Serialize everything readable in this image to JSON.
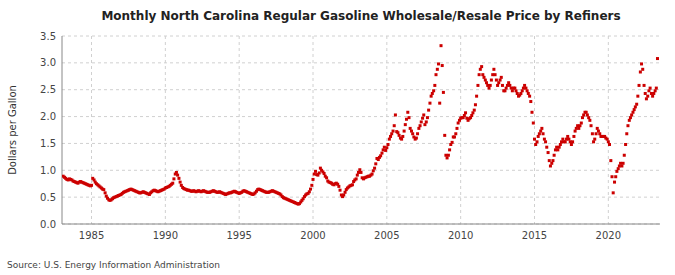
{
  "chart_data": {
    "type": "scatter",
    "title": "Monthly North Carolina Regular Gasoline Wholesale/Resale Price by Refiners",
    "ylabel": "Dollars per Gallon",
    "annotations": [
      "Source: U.S. Energy Information Administration"
    ],
    "color": "#cc0000",
    "marker": "square",
    "grid": true,
    "xlim": [
      1983.0,
      2023.5
    ],
    "ylim": [
      0.0,
      3.5
    ],
    "xticks": [
      1985,
      1990,
      1995,
      2000,
      2005,
      2010,
      2015,
      2020
    ],
    "yticks": [
      {
        "value": 0.0,
        "label": "0.0"
      },
      0.5,
      {
        "value": 1.0,
        "label": "1.0"
      },
      1.5,
      {
        "value": 2.0,
        "label": "2.0"
      },
      2.5,
      {
        "value": 3.0,
        "label": "3.0"
      },
      3.5
    ],
    "x": [
      1983.08,
      1983.17,
      1983.25,
      1983.33,
      1983.42,
      1983.5,
      1983.58,
      1983.67,
      1983.75,
      1983.83,
      1983.92,
      1984.0,
      1984.08,
      1984.17,
      1984.25,
      1984.33,
      1984.42,
      1984.5,
      1984.58,
      1984.67,
      1984.75,
      1984.83,
      1984.92,
      1985.0,
      1985.08,
      1985.17,
      1985.25,
      1985.33,
      1985.42,
      1985.5,
      1985.58,
      1985.67,
      1985.75,
      1985.83,
      1985.92,
      1986.0,
      1986.08,
      1986.17,
      1986.25,
      1986.33,
      1986.42,
      1986.5,
      1986.58,
      1986.67,
      1986.75,
      1986.83,
      1986.92,
      1987.0,
      1987.08,
      1987.17,
      1987.25,
      1987.33,
      1987.42,
      1987.5,
      1987.58,
      1987.67,
      1987.75,
      1987.83,
      1987.92,
      1988.0,
      1988.08,
      1988.17,
      1988.25,
      1988.33,
      1988.42,
      1988.5,
      1988.58,
      1988.67,
      1988.75,
      1988.83,
      1988.92,
      1989.0,
      1989.08,
      1989.17,
      1989.25,
      1989.33,
      1989.42,
      1989.5,
      1989.58,
      1989.67,
      1989.75,
      1989.83,
      1989.92,
      1990.0,
      1990.08,
      1990.17,
      1990.25,
      1990.33,
      1990.42,
      1990.5,
      1990.58,
      1990.67,
      1990.75,
      1990.83,
      1990.92,
      1991.0,
      1991.08,
      1991.17,
      1991.25,
      1991.33,
      1991.42,
      1991.5,
      1991.58,
      1991.67,
      1991.75,
      1991.83,
      1991.92,
      1992.0,
      1992.08,
      1992.17,
      1992.25,
      1992.33,
      1992.42,
      1992.5,
      1992.58,
      1992.67,
      1992.75,
      1992.83,
      1992.92,
      1993.0,
      1993.08,
      1993.17,
      1993.25,
      1993.33,
      1993.42,
      1993.5,
      1993.58,
      1993.67,
      1993.75,
      1993.83,
      1993.92,
      1994.0,
      1994.08,
      1994.17,
      1994.25,
      1994.33,
      1994.42,
      1994.5,
      1994.58,
      1994.67,
      1994.75,
      1994.83,
      1994.92,
      1995.0,
      1995.08,
      1995.17,
      1995.25,
      1995.33,
      1995.42,
      1995.5,
      1995.58,
      1995.67,
      1995.75,
      1995.83,
      1995.92,
      1996.0,
      1996.08,
      1996.17,
      1996.25,
      1996.33,
      1996.42,
      1996.5,
      1996.58,
      1996.67,
      1996.75,
      1996.83,
      1996.92,
      1997.0,
      1997.08,
      1997.17,
      1997.25,
      1997.33,
      1997.42,
      1997.5,
      1997.58,
      1997.67,
      1997.75,
      1997.83,
      1997.92,
      1998.0,
      1998.08,
      1998.17,
      1998.25,
      1998.33,
      1998.42,
      1998.5,
      1998.58,
      1998.67,
      1998.75,
      1998.83,
      1998.92,
      1999.0,
      1999.08,
      1999.17,
      1999.25,
      1999.33,
      1999.42,
      1999.5,
      1999.58,
      1999.67,
      1999.75,
      1999.83,
      1999.92,
      2000.0,
      2000.08,
      2000.17,
      2000.25,
      2000.33,
      2000.42,
      2000.5,
      2000.58,
      2000.67,
      2000.75,
      2000.83,
      2000.92,
      2001.0,
      2001.08,
      2001.17,
      2001.25,
      2001.33,
      2001.42,
      2001.5,
      2001.58,
      2001.67,
      2001.75,
      2001.83,
      2001.92,
      2002.0,
      2002.08,
      2002.17,
      2002.25,
      2002.33,
      2002.42,
      2002.5,
      2002.58,
      2002.67,
      2002.75,
      2002.83,
      2002.92,
      2003.0,
      2003.08,
      2003.17,
      2003.25,
      2003.33,
      2003.42,
      2003.5,
      2003.58,
      2003.67,
      2003.75,
      2003.83,
      2003.92,
      2004.0,
      2004.08,
      2004.17,
      2004.25,
      2004.33,
      2004.42,
      2004.5,
      2004.58,
      2004.67,
      2004.75,
      2004.83,
      2004.92,
      2005.0,
      2005.08,
      2005.17,
      2005.25,
      2005.33,
      2005.42,
      2005.5,
      2005.58,
      2005.67,
      2005.75,
      2005.83,
      2005.92,
      2006.0,
      2006.08,
      2006.17,
      2006.25,
      2006.33,
      2006.42,
      2006.5,
      2006.58,
      2006.67,
      2006.75,
      2006.83,
      2006.92,
      2007.0,
      2007.08,
      2007.17,
      2007.25,
      2007.33,
      2007.42,
      2007.5,
      2007.58,
      2007.67,
      2007.75,
      2007.83,
      2007.92,
      2008.0,
      2008.08,
      2008.17,
      2008.25,
      2008.33,
      2008.42,
      2008.5,
      2008.58,
      2008.67,
      2008.75,
      2008.83,
      2008.92,
      2009.0,
      2009.08,
      2009.17,
      2009.25,
      2009.33,
      2009.42,
      2009.5,
      2009.58,
      2009.67,
      2009.75,
      2009.83,
      2009.92,
      2010.0,
      2010.08,
      2010.17,
      2010.25,
      2010.33,
      2010.42,
      2010.5,
      2010.58,
      2010.67,
      2010.75,
      2010.83,
      2010.92,
      2011.0,
      2011.08,
      2011.17,
      2011.25,
      2011.33,
      2011.42,
      2011.5,
      2011.58,
      2011.67,
      2011.75,
      2011.83,
      2011.92,
      2012.0,
      2012.08,
      2012.17,
      2012.25,
      2012.33,
      2012.42,
      2012.5,
      2012.58,
      2012.67,
      2012.75,
      2012.83,
      2012.92,
      2013.0,
      2013.08,
      2013.17,
      2013.25,
      2013.33,
      2013.42,
      2013.5,
      2013.58,
      2013.67,
      2013.75,
      2013.83,
      2013.92,
      2014.0,
      2014.08,
      2014.17,
      2014.25,
      2014.33,
      2014.42,
      2014.5,
      2014.58,
      2014.67,
      2014.75,
      2014.83,
      2014.92,
      2015.0,
      2015.08,
      2015.17,
      2015.25,
      2015.33,
      2015.42,
      2015.5,
      2015.58,
      2015.67,
      2015.75,
      2015.83,
      2015.92,
      2016.0,
      2016.08,
      2016.17,
      2016.25,
      2016.33,
      2016.42,
      2016.5,
      2016.58,
      2016.67,
      2016.75,
      2016.83,
      2016.92,
      2017.0,
      2017.08,
      2017.17,
      2017.25,
      2017.33,
      2017.42,
      2017.5,
      2017.58,
      2017.67,
      2017.75,
      2017.83,
      2017.92,
      2018.0,
      2018.08,
      2018.17,
      2018.25,
      2018.33,
      2018.42,
      2018.5,
      2018.58,
      2018.67,
      2018.75,
      2018.83,
      2018.92,
      2019.0,
      2019.08,
      2019.17,
      2019.25,
      2019.33,
      2019.42,
      2019.5,
      2019.58,
      2019.67,
      2019.75,
      2019.83,
      2019.92,
      2020.0,
      2020.08,
      2020.17,
      2020.25,
      2020.33,
      2020.42,
      2020.5,
      2020.58,
      2020.67,
      2020.75,
      2020.83,
      2020.92,
      2021.0,
      2021.08,
      2021.17,
      2021.25,
      2021.33,
      2021.42,
      2021.5,
      2021.58,
      2021.67,
      2021.75,
      2021.83,
      2021.92,
      2022.0,
      2022.08,
      2022.17,
      2022.25,
      2022.33,
      2022.42,
      2022.5,
      2022.58,
      2022.67,
      2022.75,
      2022.83,
      2022.92,
      2023.0,
      2023.08,
      2023.17,
      2023.25,
      2023.33
    ],
    "values": [
      0.89,
      0.87,
      0.85,
      0.83,
      0.82,
      0.84,
      0.83,
      0.82,
      0.8,
      0.79,
      0.78,
      0.77,
      0.76,
      0.78,
      0.79,
      0.78,
      0.77,
      0.76,
      0.75,
      0.74,
      0.73,
      0.72,
      0.71,
      0.72,
      0.85,
      0.82,
      0.78,
      0.75,
      0.73,
      0.71,
      0.69,
      0.67,
      0.65,
      0.64,
      0.58,
      0.52,
      0.48,
      0.45,
      0.44,
      0.45,
      0.47,
      0.49,
      0.5,
      0.51,
      0.52,
      0.53,
      0.54,
      0.55,
      0.57,
      0.59,
      0.6,
      0.61,
      0.62,
      0.63,
      0.64,
      0.65,
      0.64,
      0.63,
      0.62,
      0.61,
      0.6,
      0.59,
      0.58,
      0.58,
      0.59,
      0.6,
      0.59,
      0.58,
      0.57,
      0.56,
      0.55,
      0.58,
      0.6,
      0.62,
      0.63,
      0.62,
      0.61,
      0.6,
      0.61,
      0.62,
      0.63,
      0.64,
      0.65,
      0.67,
      0.68,
      0.69,
      0.7,
      0.72,
      0.74,
      0.76,
      0.84,
      0.93,
      0.96,
      0.91,
      0.85,
      0.78,
      0.72,
      0.68,
      0.66,
      0.65,
      0.64,
      0.63,
      0.63,
      0.62,
      0.61,
      0.61,
      0.62,
      0.61,
      0.6,
      0.61,
      0.62,
      0.61,
      0.6,
      0.61,
      0.62,
      0.61,
      0.6,
      0.59,
      0.59,
      0.59,
      0.6,
      0.61,
      0.62,
      0.61,
      0.6,
      0.59,
      0.59,
      0.6,
      0.59,
      0.58,
      0.57,
      0.56,
      0.55,
      0.56,
      0.57,
      0.58,
      0.58,
      0.59,
      0.6,
      0.61,
      0.6,
      0.59,
      0.58,
      0.57,
      0.58,
      0.59,
      0.61,
      0.62,
      0.61,
      0.6,
      0.59,
      0.58,
      0.57,
      0.56,
      0.55,
      0.56,
      0.58,
      0.61,
      0.64,
      0.65,
      0.64,
      0.63,
      0.62,
      0.61,
      0.6,
      0.59,
      0.59,
      0.59,
      0.6,
      0.61,
      0.62,
      0.61,
      0.6,
      0.59,
      0.58,
      0.57,
      0.56,
      0.54,
      0.51,
      0.49,
      0.48,
      0.47,
      0.46,
      0.45,
      0.44,
      0.43,
      0.42,
      0.41,
      0.4,
      0.39,
      0.38,
      0.37,
      0.38,
      0.41,
      0.44,
      0.47,
      0.51,
      0.54,
      0.56,
      0.57,
      0.6,
      0.65,
      0.72,
      0.83,
      0.93,
      0.98,
      0.92,
      0.91,
      0.95,
      1.04,
      1.0,
      0.97,
      0.94,
      0.89,
      0.86,
      0.8,
      0.78,
      0.77,
      0.76,
      0.74,
      0.73,
      0.75,
      0.76,
      0.74,
      0.7,
      0.63,
      0.54,
      0.51,
      0.54,
      0.59,
      0.64,
      0.67,
      0.69,
      0.71,
      0.72,
      0.73,
      0.79,
      0.82,
      0.84,
      0.91,
      0.96,
      1.01,
      0.96,
      0.86,
      0.84,
      0.86,
      0.87,
      0.88,
      0.89,
      0.89,
      0.91,
      0.93,
      0.99,
      1.04,
      1.12,
      1.22,
      1.2,
      1.24,
      1.27,
      1.32,
      1.38,
      1.43,
      1.37,
      1.42,
      1.48,
      1.58,
      1.63,
      1.68,
      1.73,
      1.83,
      2.03,
      1.72,
      1.7,
      1.65,
      1.6,
      1.58,
      1.63,
      1.73,
      1.85,
      1.95,
      2.08,
      1.98,
      1.78,
      1.73,
      1.68,
      1.62,
      1.58,
      1.6,
      1.68,
      1.78,
      1.83,
      1.9,
      1.97,
      2.03,
      1.85,
      1.9,
      1.98,
      2.12,
      2.25,
      2.38,
      2.43,
      2.48,
      2.58,
      2.78,
      2.88,
      2.98,
      2.25,
      3.32,
      2.95,
      2.45,
      1.65,
      1.28,
      1.23,
      1.28,
      1.38,
      1.48,
      1.52,
      1.62,
      1.62,
      1.68,
      1.78,
      1.88,
      1.93,
      1.97,
      1.98,
      1.98,
      2.02,
      2.07,
      1.97,
      1.93,
      1.96,
      1.98,
      2.02,
      2.07,
      2.12,
      2.22,
      2.38,
      2.58,
      2.78,
      2.88,
      2.93,
      2.78,
      2.73,
      2.68,
      2.63,
      2.58,
      2.53,
      2.58,
      2.68,
      2.78,
      2.88,
      2.78,
      2.68,
      2.58,
      2.63,
      2.68,
      2.73,
      2.58,
      2.48,
      2.48,
      2.53,
      2.58,
      2.63,
      2.58,
      2.53,
      2.48,
      2.53,
      2.53,
      2.48,
      2.43,
      2.38,
      2.4,
      2.43,
      2.48,
      2.53,
      2.58,
      2.53,
      2.48,
      2.43,
      2.38,
      2.28,
      2.08,
      1.88,
      1.58,
      1.48,
      1.53,
      1.63,
      1.68,
      1.73,
      1.78,
      1.68,
      1.58,
      1.53,
      1.43,
      1.33,
      1.18,
      1.08,
      1.13,
      1.18,
      1.28,
      1.38,
      1.43,
      1.38,
      1.43,
      1.48,
      1.53,
      1.58,
      1.53,
      1.53,
      1.58,
      1.63,
      1.58,
      1.53,
      1.48,
      1.53,
      1.63,
      1.73,
      1.78,
      1.83,
      1.78,
      1.83,
      1.88,
      1.98,
      2.03,
      2.08,
      2.08,
      2.03,
      1.98,
      1.93,
      1.83,
      1.68,
      1.53,
      1.58,
      1.68,
      1.78,
      1.73,
      1.68,
      1.63,
      1.63,
      1.63,
      1.63,
      1.6,
      1.58,
      1.53,
      1.48,
      1.18,
      0.88,
      0.58,
      0.78,
      0.88,
      0.98,
      1.03,
      1.08,
      1.13,
      1.08,
      1.13,
      1.28,
      1.48,
      1.68,
      1.83,
      1.93,
      1.98,
      2.03,
      2.08,
      2.13,
      2.18,
      2.23,
      2.38,
      2.58,
      2.83,
      2.98,
      2.88,
      2.58,
      2.43,
      2.33,
      2.38,
      2.48,
      2.53,
      2.43,
      2.38,
      2.43,
      2.48,
      2.53,
      3.08
    ]
  }
}
